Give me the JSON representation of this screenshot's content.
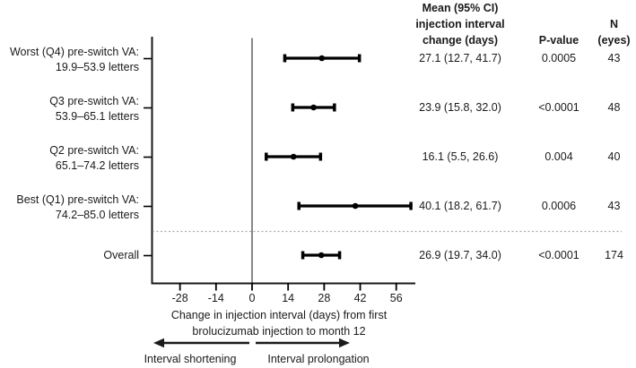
{
  "chart_data": {
    "type": "forest",
    "title": "",
    "x_axis": {
      "ticks": [
        "-28",
        "-14",
        "0",
        "14",
        "28",
        "42",
        "56"
      ],
      "tick_values": [
        -28,
        -14,
        0,
        14,
        28,
        42,
        56
      ],
      "range": [
        -38,
        63
      ],
      "zero_reference_line": 0,
      "label_lines": [
        "Change in injection interval (days) from first",
        "brolucizumab injection to month 12"
      ]
    },
    "columns": {
      "mean_header_lines": [
        "Mean (95% CI)",
        "injection interval",
        "change (days)"
      ],
      "pvalue_header": "P-value",
      "n_header_lines": [
        "N",
        "(eyes)"
      ]
    },
    "rows": [
      {
        "label_lines": [
          "Worst (Q4) pre-switch VA:",
          "19.9–53.9 letters"
        ],
        "mean": 27.1,
        "ci_low": 12.7,
        "ci_high": 41.7,
        "mean_ci_text": "27.1 (12.7, 41.7)",
        "p_value": "0.0005",
        "n": "43"
      },
      {
        "label_lines": [
          "Q3 pre-switch VA:",
          "53.9–65.1 letters"
        ],
        "mean": 23.9,
        "ci_low": 15.8,
        "ci_high": 32.0,
        "mean_ci_text": "23.9 (15.8, 32.0)",
        "p_value": "<0.0001",
        "n": "48"
      },
      {
        "label_lines": [
          "Q2 pre-switch VA:",
          "65.1–74.2 letters"
        ],
        "mean": 16.1,
        "ci_low": 5.5,
        "ci_high": 26.6,
        "mean_ci_text": "16.1 (5.5, 26.6)",
        "p_value": "0.004",
        "n": "40"
      },
      {
        "label_lines": [
          "Best (Q1) pre-switch VA:",
          "74.2–85.0 letters"
        ],
        "mean": 40.1,
        "ci_low": 18.2,
        "ci_high": 61.7,
        "mean_ci_text": "40.1 (18.2, 61.7)",
        "p_value": "0.0006",
        "n": "43"
      },
      {
        "label_lines": [
          "Overall"
        ],
        "mean": 26.9,
        "ci_low": 19.7,
        "ci_high": 34.0,
        "mean_ci_text": "26.9 (19.7, 34.0)",
        "p_value": "<0.0001",
        "n": "174",
        "separator_above": true
      }
    ],
    "direction_annotations": {
      "left_label": "Interval shortening",
      "right_label": "Interval prolongation"
    },
    "legend": "none",
    "grid": "off",
    "colors": {
      "marker_line": "#000000",
      "zero_line": "#7a7a7a",
      "separator_dotted": "#a8a8a8",
      "text": "#1a1a1a",
      "background": "#ffffff"
    }
  }
}
